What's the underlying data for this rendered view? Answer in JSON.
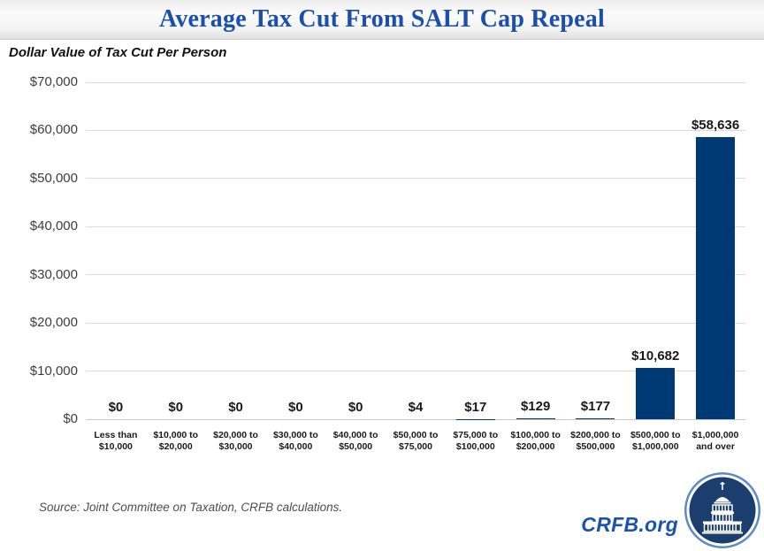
{
  "header": {
    "title": "Average Tax Cut From SALT Cap Repeal"
  },
  "subtitle": "Dollar Value of Tax Cut Per Person",
  "chart_data": {
    "type": "bar",
    "title": "Average Tax Cut From SALT Cap Repeal",
    "subtitle": "Dollar Value of Tax Cut Per Person",
    "categories": [
      "Less than\n$10,000",
      "$10,000 to\n$20,000",
      "$20,000 to\n$30,000",
      "$30,000 to\n$40,000",
      "$40,000 to\n$50,000",
      "$50,000 to\n$75,000",
      "$75,000 to\n$100,000",
      "$100,000 to\n$200,000",
      "$200,000 to\n$500,000",
      "$500,000 to\n$1,000,000",
      "$1,000,000\nand over"
    ],
    "values": [
      0,
      0,
      0,
      0,
      0,
      4,
      17,
      129,
      177,
      10682,
      58636
    ],
    "value_labels": [
      "$0",
      "$0",
      "$0",
      "$0",
      "$0",
      "$4",
      "$17",
      "$129",
      "$177",
      "$10,682",
      "$58,636"
    ],
    "y_ticks": [
      "$70,000",
      "$60,000",
      "$50,000",
      "$40,000",
      "$30,000",
      "$20,000",
      "$10,000",
      "$0"
    ],
    "ylim": [
      0,
      70000
    ],
    "xlabel": "",
    "ylabel": "Dollar Value of Tax Cut Per Person",
    "grid": true,
    "legend": "none",
    "bar_color": "#003a74"
  },
  "footer": {
    "source": "Source: Joint Committee on Taxation, CRFB calculations.",
    "brand": "CRFB.org"
  },
  "colors": {
    "title_blue": "#1b4fae",
    "brand_blue": "#1a53ae",
    "bar_navy": "#003a74",
    "logo_navy": "#1c3e6e",
    "logo_ring_blue": "#5b8ac4",
    "gridline_gray": "#dbdbdb"
  }
}
